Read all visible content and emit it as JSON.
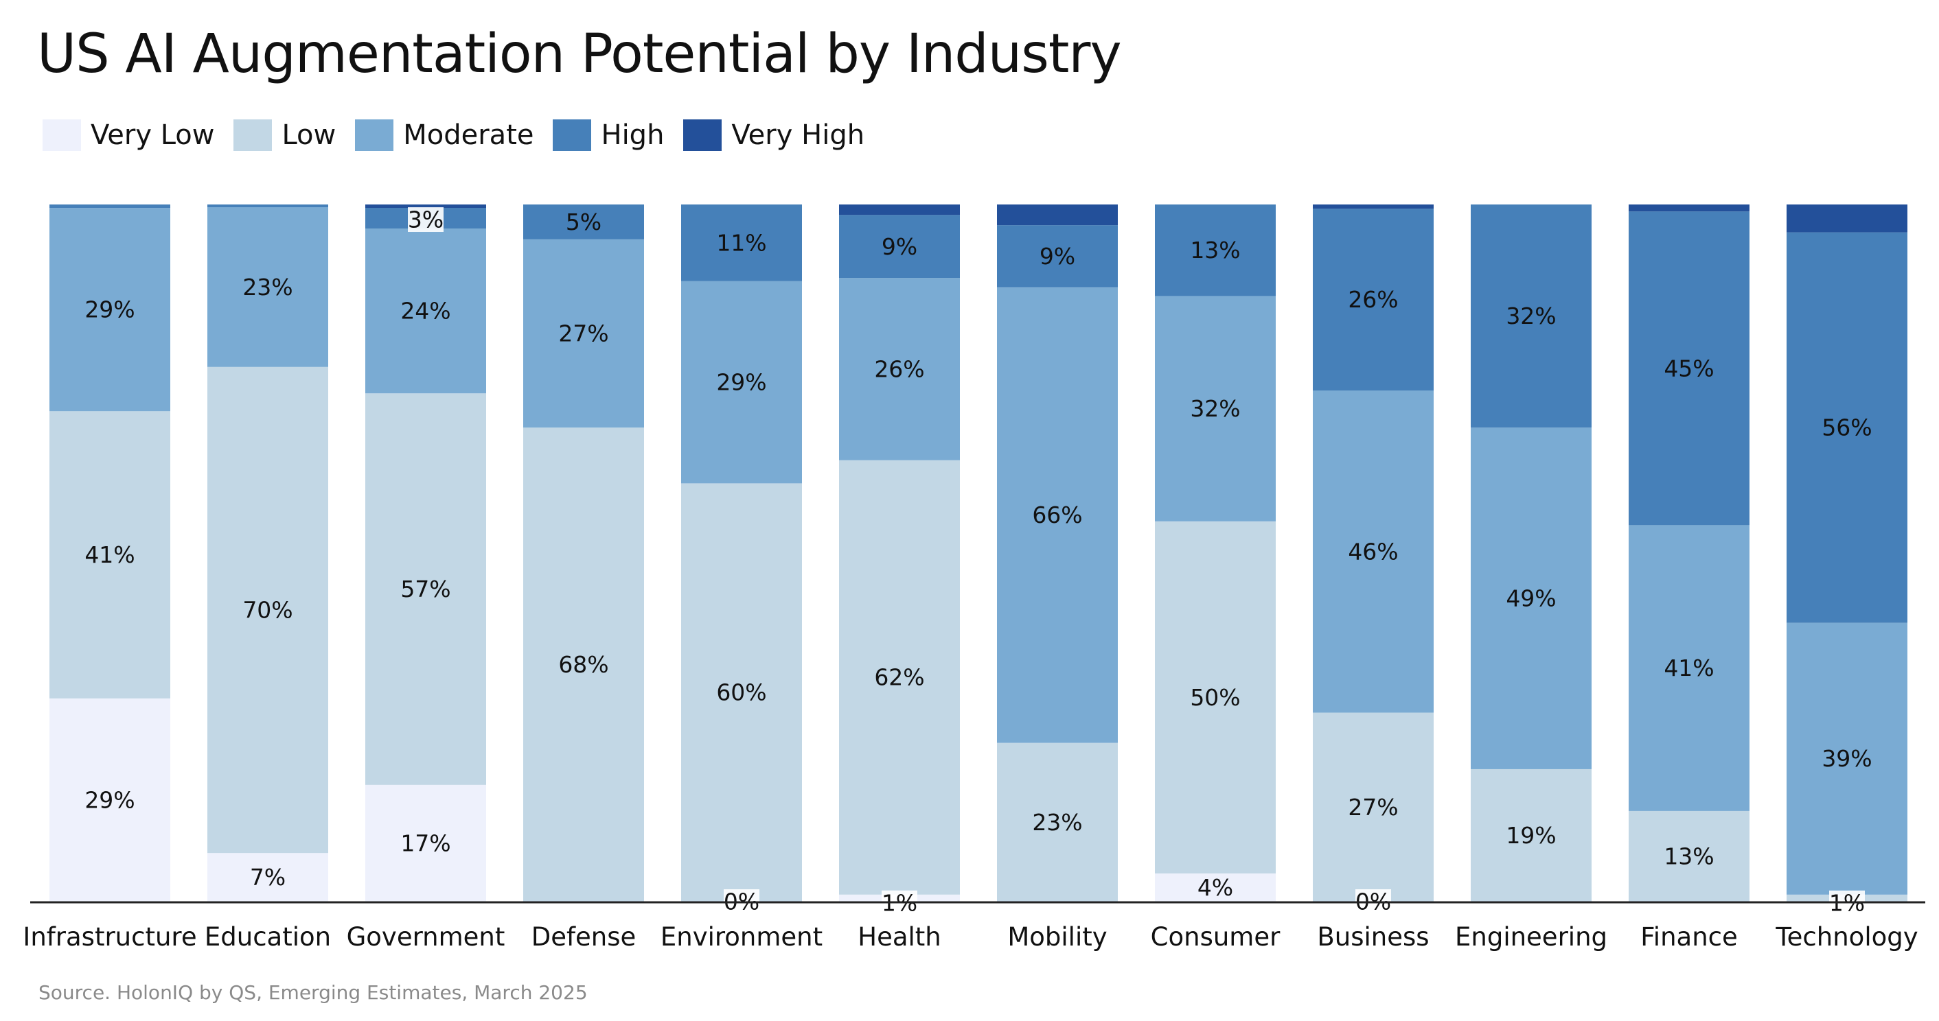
{
  "chart_data": {
    "type": "bar",
    "stacked": true,
    "title": "US AI Augmentation Potential by Industry",
    "source": "Source. HolonIQ by QS, Emerging Estimates, March 2025",
    "legend_position": "top-left",
    "ylim": [
      0,
      100
    ],
    "grid": false,
    "categories": [
      "Infrastructure",
      "Education",
      "Government",
      "Defense",
      "Environment",
      "Health",
      "Mobility",
      "Consumer",
      "Business",
      "Engineering",
      "Finance",
      "Technology"
    ],
    "series": [
      {
        "name": "Very Low",
        "color": "#eef1fc",
        "values": [
          29,
          7,
          17,
          0,
          0,
          1,
          0,
          4,
          0,
          0,
          0,
          0
        ],
        "labels": [
          "29%",
          "7%",
          "17%",
          "",
          "0%",
          "1%",
          "",
          "4%",
          "0%",
          "",
          "",
          ""
        ]
      },
      {
        "name": "Low",
        "color": "#c2d7e5",
        "values": [
          41,
          70,
          57,
          68,
          60,
          62,
          23,
          50,
          27,
          19,
          13,
          1
        ],
        "labels": [
          "41%",
          "70%",
          "57%",
          "68%",
          "60%",
          "62%",
          "23%",
          "50%",
          "27%",
          "19%",
          "13%",
          "1%"
        ]
      },
      {
        "name": "Moderate",
        "color": "#7aabd3",
        "values": [
          29,
          23,
          24,
          27,
          29,
          26,
          66,
          32,
          46,
          49,
          41,
          39
        ],
        "labels": [
          "29%",
          "23%",
          "24%",
          "27%",
          "29%",
          "26%",
          "66%",
          "32%",
          "46%",
          "49%",
          "41%",
          "39%"
        ]
      },
      {
        "name": "High",
        "color": "#4680b9",
        "values": [
          0.5,
          0.4,
          3,
          5,
          11,
          9,
          9,
          13,
          26,
          32,
          45,
          56
        ],
        "labels": [
          "",
          "",
          "3%",
          "5%",
          "11%",
          "9%",
          "9%",
          "13%",
          "26%",
          "32%",
          "45%",
          "56%"
        ]
      },
      {
        "name": "Very High",
        "color": "#23509a",
        "values": [
          0,
          0,
          0.5,
          0,
          0,
          1.5,
          3,
          0,
          0.6,
          0,
          1,
          4
        ],
        "labels": [
          "",
          "",
          "",
          "",
          "",
          "",
          "",
          "",
          "",
          "",
          "",
          ""
        ]
      }
    ]
  }
}
